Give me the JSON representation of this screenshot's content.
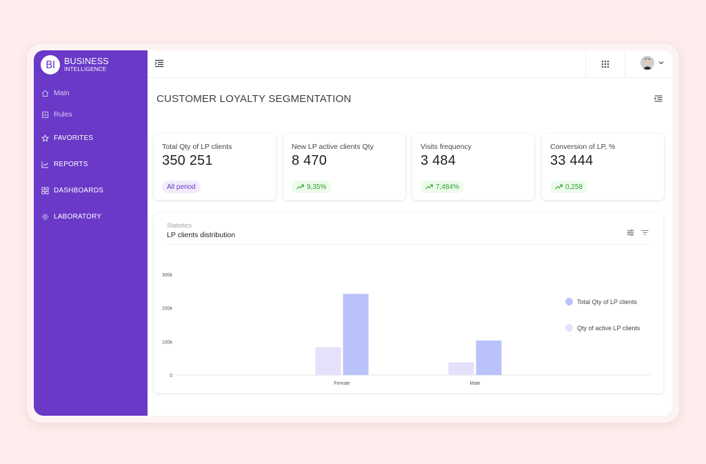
{
  "app": {
    "logo_initials": "BI",
    "logo_line1": "BUSINESS",
    "logo_line2": "INTELLIGENCE"
  },
  "sidebar": {
    "items": [
      {
        "label": "Main",
        "icon": "home-icon"
      },
      {
        "label": "Rules",
        "icon": "rules-icon"
      },
      {
        "label": "FAVORITES",
        "icon": "star-icon"
      },
      {
        "label": "REPORTS",
        "icon": "chart-line-icon"
      },
      {
        "label": "DASHBOARDS",
        "icon": "grid-icon"
      },
      {
        "label": "LABORATORY",
        "icon": "gear-icon"
      }
    ]
  },
  "header": {
    "title": "CUSTOMER LOYALTY SEGMENTATION"
  },
  "kpis": [
    {
      "label": "Total Qty of LP clients",
      "value": "350 251",
      "badge": "All period"
    },
    {
      "label": "New LP active clients Qty",
      "value": "8 470",
      "badge": "9,35%"
    },
    {
      "label": "Visits frequency",
      "value": "3 484",
      "badge": "7,484%"
    },
    {
      "label": "Conversion of LP, %",
      "value": "33 444",
      "badge": "0,258"
    }
  ],
  "chart_card": {
    "subtitle": "Statistics",
    "title": "LP clients distribution"
  },
  "colors": {
    "sidebar": "#6a39c7",
    "series_total": "#bac3f9",
    "series_active": "#e5e1fa",
    "badge_up": "#2d9d2d"
  },
  "chart_data": {
    "type": "bar",
    "categories": [
      "Female",
      "Male"
    ],
    "series": [
      {
        "name": "Qty of active LP clients",
        "values": [
          83000,
          38000
        ]
      },
      {
        "name": "Total Qty of LP clients",
        "values": [
          242000,
          103000
        ]
      }
    ],
    "yticks": [
      "0",
      "100k",
      "200k",
      "300k"
    ],
    "ylim": [
      0,
      300000
    ],
    "legend": "right",
    "grid": false
  }
}
